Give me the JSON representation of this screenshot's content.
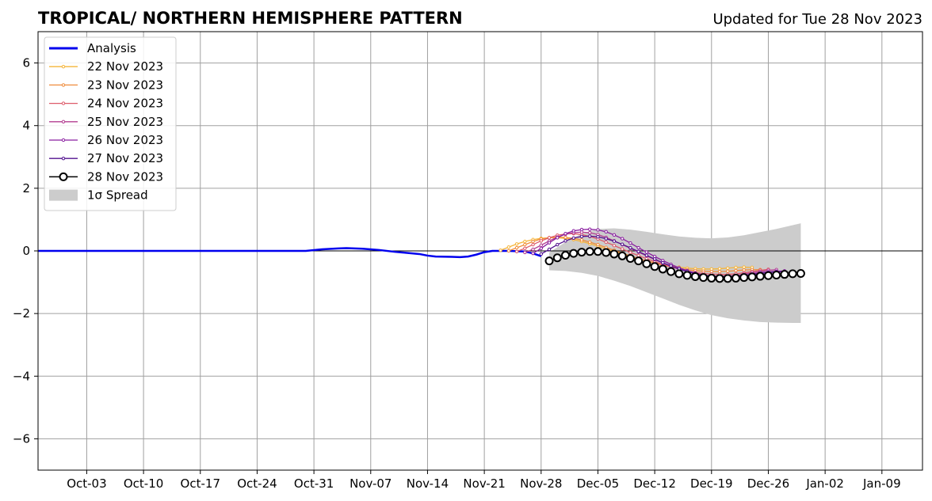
{
  "chart_data": {
    "type": "line",
    "title": "TROPICAL/ NORTHERN HEMISPHERE PATTERN",
    "subtitle": "Updated for Tue 28 Nov 2023",
    "xlabel": "",
    "ylabel": "",
    "ylim": [
      -7,
      7
    ],
    "xlim": [
      "2023-09-27",
      "2024-01-14"
    ],
    "grid": true,
    "legend_position": "top-left",
    "x_ticks": [
      "Oct-03",
      "Oct-10",
      "Oct-17",
      "Oct-24",
      "Oct-31",
      "Nov-07",
      "Nov-14",
      "Nov-21",
      "Nov-28",
      "Dec-05",
      "Dec-12",
      "Dec-19",
      "Dec-26",
      "Jan-02",
      "Jan-09"
    ],
    "x_tick_dates": [
      "2023-10-03",
      "2023-10-10",
      "2023-10-17",
      "2023-10-24",
      "2023-10-31",
      "2023-11-07",
      "2023-11-14",
      "2023-11-21",
      "2023-11-28",
      "2023-12-05",
      "2023-12-12",
      "2023-12-19",
      "2023-12-26",
      "2024-01-02",
      "2024-01-09"
    ],
    "y_ticks": [
      6,
      4,
      2,
      0,
      -2,
      -4,
      -6
    ],
    "y_tick_labels": [
      "6",
      "4",
      "2",
      "0",
      "−2",
      "−4",
      "−6"
    ],
    "legend": [
      "Analysis",
      "22 Nov 2023",
      "23 Nov 2023",
      "24 Nov 2023",
      "25 Nov 2023",
      "26 Nov 2023",
      "27 Nov 2023",
      "28 Nov 2023",
      "1σ Spread"
    ],
    "series": [
      {
        "name": "Analysis",
        "color": "#0000ee",
        "style": "solid",
        "x": [
          "2023-09-27",
          "2023-10-30",
          "2023-11-01",
          "2023-11-03",
          "2023-11-04",
          "2023-11-06",
          "2023-11-08",
          "2023-11-10",
          "2023-11-13",
          "2023-11-14",
          "2023-11-15",
          "2023-11-17",
          "2023-11-18",
          "2023-11-19",
          "2023-11-20",
          "2023-11-21",
          "2023-11-22",
          "2023-11-24",
          "2023-11-26",
          "2023-11-27",
          "2023-11-28"
        ],
        "y": [
          0.0,
          0.0,
          0.05,
          0.08,
          0.09,
          0.07,
          0.03,
          -0.03,
          -0.1,
          -0.15,
          -0.18,
          -0.19,
          -0.2,
          -0.18,
          -0.12,
          -0.04,
          0.0,
          0.0,
          -0.02,
          -0.08,
          -0.17
        ]
      },
      {
        "name": "22 Nov 2023",
        "color": "#f5b53a",
        "x": [
          "2023-11-23",
          "2023-11-24",
          "2023-11-25",
          "2023-11-26",
          "2023-11-27",
          "2023-11-28",
          "2023-11-29",
          "2023-11-30",
          "2023-12-01",
          "2023-12-02",
          "2023-12-03",
          "2023-12-04",
          "2023-12-05",
          "2023-12-06",
          "2023-12-07",
          "2023-12-08",
          "2023-12-09",
          "2023-12-10",
          "2023-12-11",
          "2023-12-12",
          "2023-12-13",
          "2023-12-14",
          "2023-12-15",
          "2023-12-16",
          "2023-12-17",
          "2023-12-18",
          "2023-12-19",
          "2023-12-20",
          "2023-12-21",
          "2023-12-22",
          "2023-12-23",
          "2023-12-24"
        ],
        "y": [
          0.02,
          0.12,
          0.22,
          0.3,
          0.36,
          0.4,
          0.42,
          0.42,
          0.4,
          0.36,
          0.3,
          0.23,
          0.15,
          0.06,
          -0.02,
          -0.1,
          -0.18,
          -0.25,
          -0.32,
          -0.38,
          -0.43,
          -0.48,
          -0.52,
          -0.55,
          -0.57,
          -0.58,
          -0.58,
          -0.57,
          -0.55,
          -0.53,
          -0.52,
          -0.53
        ]
      },
      {
        "name": "23 Nov 2023",
        "color": "#ef8c3c",
        "x": [
          "2023-11-24",
          "2023-11-25",
          "2023-11-26",
          "2023-11-27",
          "2023-11-28",
          "2023-11-29",
          "2023-11-30",
          "2023-12-01",
          "2023-12-02",
          "2023-12-03",
          "2023-12-04",
          "2023-12-05",
          "2023-12-06",
          "2023-12-07",
          "2023-12-08",
          "2023-12-09",
          "2023-12-10",
          "2023-12-11",
          "2023-12-12",
          "2023-12-13",
          "2023-12-14",
          "2023-12-15",
          "2023-12-16",
          "2023-12-17",
          "2023-12-18",
          "2023-12-19",
          "2023-12-20",
          "2023-12-21",
          "2023-12-22",
          "2023-12-23",
          "2023-12-24",
          "2023-12-25"
        ],
        "y": [
          0.0,
          0.1,
          0.2,
          0.3,
          0.38,
          0.42,
          0.44,
          0.43,
          0.4,
          0.35,
          0.28,
          0.2,
          0.11,
          0.02,
          -0.07,
          -0.16,
          -0.24,
          -0.32,
          -0.39,
          -0.45,
          -0.51,
          -0.56,
          -0.6,
          -0.63,
          -0.65,
          -0.66,
          -0.66,
          -0.65,
          -0.63,
          -0.61,
          -0.6,
          -0.6
        ]
      },
      {
        "name": "24 Nov 2023",
        "color": "#dd5b6a",
        "x": [
          "2023-11-25",
          "2023-11-26",
          "2023-11-27",
          "2023-11-28",
          "2023-11-29",
          "2023-11-30",
          "2023-12-01",
          "2023-12-02",
          "2023-12-03",
          "2023-12-04",
          "2023-12-05",
          "2023-12-06",
          "2023-12-07",
          "2023-12-08",
          "2023-12-09",
          "2023-12-10",
          "2023-12-11",
          "2023-12-12",
          "2023-12-13",
          "2023-12-14",
          "2023-12-15",
          "2023-12-16",
          "2023-12-17",
          "2023-12-18",
          "2023-12-19",
          "2023-12-20",
          "2023-12-21",
          "2023-12-22",
          "2023-12-23",
          "2023-12-24",
          "2023-12-25",
          "2023-12-26"
        ],
        "y": [
          -0.02,
          0.08,
          0.2,
          0.32,
          0.42,
          0.5,
          0.54,
          0.55,
          0.52,
          0.46,
          0.38,
          0.28,
          0.17,
          0.06,
          -0.05,
          -0.15,
          -0.25,
          -0.34,
          -0.43,
          -0.51,
          -0.58,
          -0.64,
          -0.69,
          -0.72,
          -0.74,
          -0.75,
          -0.75,
          -0.73,
          -0.7,
          -0.66,
          -0.62,
          -0.59
        ]
      },
      {
        "name": "25 Nov 2023",
        "color": "#b33c91",
        "x": [
          "2023-11-26",
          "2023-11-27",
          "2023-11-28",
          "2023-11-29",
          "2023-11-30",
          "2023-12-01",
          "2023-12-02",
          "2023-12-03",
          "2023-12-04",
          "2023-12-05",
          "2023-12-06",
          "2023-12-07",
          "2023-12-08",
          "2023-12-09",
          "2023-12-10",
          "2023-12-11",
          "2023-12-12",
          "2023-12-13",
          "2023-12-14",
          "2023-12-15",
          "2023-12-16",
          "2023-12-17",
          "2023-12-18",
          "2023-12-19",
          "2023-12-20",
          "2023-12-21",
          "2023-12-22",
          "2023-12-23",
          "2023-12-24",
          "2023-12-25",
          "2023-12-26",
          "2023-12-27"
        ],
        "y": [
          -0.05,
          0.05,
          0.18,
          0.32,
          0.44,
          0.53,
          0.58,
          0.6,
          0.58,
          0.52,
          0.43,
          0.32,
          0.2,
          0.08,
          -0.04,
          -0.16,
          -0.28,
          -0.39,
          -0.49,
          -0.58,
          -0.66,
          -0.72,
          -0.77,
          -0.8,
          -0.81,
          -0.8,
          -0.78,
          -0.74,
          -0.7,
          -0.66,
          -0.62,
          -0.6
        ]
      },
      {
        "name": "26 Nov 2023",
        "color": "#8a1fa0",
        "x": [
          "2023-11-27",
          "2023-11-28",
          "2023-11-29",
          "2023-11-30",
          "2023-12-01",
          "2023-12-02",
          "2023-12-03",
          "2023-12-04",
          "2023-12-05",
          "2023-12-06",
          "2023-12-07",
          "2023-12-08",
          "2023-12-09",
          "2023-12-10",
          "2023-12-11",
          "2023-12-12",
          "2023-12-13",
          "2023-12-14",
          "2023-12-15",
          "2023-12-16",
          "2023-12-17",
          "2023-12-18",
          "2023-12-19",
          "2023-12-20",
          "2023-12-21",
          "2023-12-22",
          "2023-12-23",
          "2023-12-24",
          "2023-12-25",
          "2023-12-26",
          "2023-12-27",
          "2023-12-28"
        ],
        "y": [
          -0.08,
          0.08,
          0.26,
          0.42,
          0.55,
          0.64,
          0.68,
          0.69,
          0.67,
          0.61,
          0.51,
          0.39,
          0.25,
          0.1,
          -0.04,
          -0.18,
          -0.31,
          -0.43,
          -0.54,
          -0.63,
          -0.71,
          -0.77,
          -0.81,
          -0.83,
          -0.83,
          -0.81,
          -0.78,
          -0.74,
          -0.7,
          -0.67,
          -0.65,
          -0.64
        ]
      },
      {
        "name": "27 Nov 2023",
        "color": "#52128f",
        "x": [
          "2023-11-28",
          "2023-11-29",
          "2023-11-30",
          "2023-12-01",
          "2023-12-02",
          "2023-12-03",
          "2023-12-04",
          "2023-12-05",
          "2023-12-06",
          "2023-12-07",
          "2023-12-08",
          "2023-12-09",
          "2023-12-10",
          "2023-12-11",
          "2023-12-12",
          "2023-12-13",
          "2023-12-14",
          "2023-12-15",
          "2023-12-16",
          "2023-12-17",
          "2023-12-18",
          "2023-12-19",
          "2023-12-20",
          "2023-12-21",
          "2023-12-22",
          "2023-12-23",
          "2023-12-24",
          "2023-12-25",
          "2023-12-26",
          "2023-12-27",
          "2023-12-28"
        ],
        "y": [
          -0.1,
          0.05,
          0.2,
          0.32,
          0.41,
          0.46,
          0.47,
          0.45,
          0.39,
          0.31,
          0.21,
          0.1,
          -0.02,
          -0.14,
          -0.26,
          -0.38,
          -0.48,
          -0.58,
          -0.66,
          -0.73,
          -0.78,
          -0.82,
          -0.84,
          -0.84,
          -0.82,
          -0.79,
          -0.75,
          -0.72,
          -0.69,
          -0.67,
          -0.66
        ]
      },
      {
        "name": "28 Nov 2023",
        "color": "#000000",
        "marker": "open-circle",
        "x": [
          "2023-11-29",
          "2023-11-30",
          "2023-12-01",
          "2023-12-02",
          "2023-12-03",
          "2023-12-04",
          "2023-12-05",
          "2023-12-06",
          "2023-12-07",
          "2023-12-08",
          "2023-12-09",
          "2023-12-10",
          "2023-12-11",
          "2023-12-12",
          "2023-12-13",
          "2023-12-14",
          "2023-12-15",
          "2023-12-16",
          "2023-12-17",
          "2023-12-18",
          "2023-12-19",
          "2023-12-20",
          "2023-12-21",
          "2023-12-22",
          "2023-12-23",
          "2023-12-24",
          "2023-12-25",
          "2023-12-26",
          "2023-12-27",
          "2023-12-28",
          "2023-12-29",
          "2023-12-30"
        ],
        "y": [
          -0.32,
          -0.22,
          -0.14,
          -0.08,
          -0.04,
          -0.02,
          -0.02,
          -0.05,
          -0.1,
          -0.16,
          -0.24,
          -0.32,
          -0.41,
          -0.5,
          -0.58,
          -0.66,
          -0.73,
          -0.78,
          -0.82,
          -0.85,
          -0.87,
          -0.88,
          -0.88,
          -0.87,
          -0.85,
          -0.83,
          -0.81,
          -0.79,
          -0.77,
          -0.75,
          -0.73,
          -0.72
        ]
      }
    ],
    "spread": {
      "name": "1σ Spread",
      "color": "#cccccc",
      "x": [
        "2023-11-29",
        "2023-12-01",
        "2023-12-03",
        "2023-12-05",
        "2023-12-07",
        "2023-12-09",
        "2023-12-11",
        "2023-12-13",
        "2023-12-15",
        "2023-12-17",
        "2023-12-19",
        "2023-12-21",
        "2023-12-23",
        "2023-12-25",
        "2023-12-27",
        "2023-12-29",
        "2023-12-30"
      ],
      "upper": [
        -0.05,
        0.28,
        0.55,
        0.7,
        0.72,
        0.68,
        0.61,
        0.53,
        0.46,
        0.42,
        0.4,
        0.43,
        0.5,
        0.6,
        0.7,
        0.82,
        0.88
      ],
      "lower": [
        -0.62,
        -0.64,
        -0.7,
        -0.8,
        -0.95,
        -1.12,
        -1.32,
        -1.52,
        -1.72,
        -1.9,
        -2.05,
        -2.15,
        -2.22,
        -2.27,
        -2.29,
        -2.3,
        -2.3
      ]
    }
  }
}
